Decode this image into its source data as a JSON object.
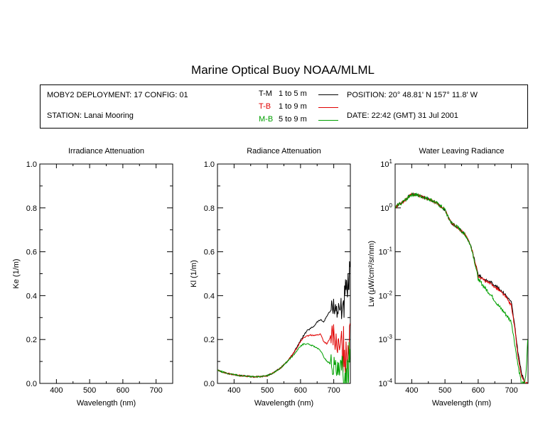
{
  "title": "Marine Optical Buoy NOAA/MLML",
  "info": {
    "deployment": "MOBY2 DEPLOYMENT: 17 CONFIG: 01",
    "station": "STATION: Lanai Mooring",
    "position": "POSITION: 20° 48.81' N   157° 11.8' W",
    "date": "DATE: 22:42 (GMT) 31 Jul 2001",
    "legend": [
      {
        "code": "T-M",
        "range": "1 to 5  m",
        "color": "#000000"
      },
      {
        "code": "T-B",
        "range": "1 to 9  m",
        "color": "#e00000"
      },
      {
        "code": "M-B",
        "range": "5 to 9  m",
        "color": "#00a000"
      }
    ]
  },
  "chart_data": [
    {
      "type": "line",
      "title": "Irradiance Attenuation",
      "xlabel": "Wavelength (nm)",
      "ylabel": "Ke  (1/m)",
      "xlim": [
        350,
        750
      ],
      "ylim": [
        0,
        1
      ],
      "xticks": [
        400,
        500,
        600,
        700
      ],
      "yticks": [
        "0.0",
        "0.2",
        "0.4",
        "0.6",
        "0.8",
        "1.0"
      ],
      "series": []
    },
    {
      "type": "line",
      "title": "Radiance Attenuation",
      "xlabel": "Wavelength (nm)",
      "ylabel": "Kl  (1/m)",
      "xlim": [
        350,
        750
      ],
      "ylim": [
        0,
        1
      ],
      "xticks": [
        400,
        500,
        600,
        700
      ],
      "yticks": [
        "0.0",
        "0.2",
        "0.4",
        "0.6",
        "0.8",
        "1.0"
      ],
      "noise_from": 690,
      "series": [
        {
          "color": "#000000",
          "noise": 0.04,
          "x": [
            350,
            360,
            380,
            400,
            420,
            440,
            460,
            480,
            500,
            520,
            540,
            560,
            580,
            590,
            600,
            610,
            620,
            630,
            640,
            650,
            660,
            670,
            680,
            690,
            700,
            710,
            720,
            730,
            740,
            745,
            750
          ],
          "y": [
            0.06,
            0.055,
            0.045,
            0.04,
            0.035,
            0.033,
            0.03,
            0.031,
            0.035,
            0.05,
            0.07,
            0.1,
            0.14,
            0.17,
            0.195,
            0.22,
            0.24,
            0.25,
            0.26,
            0.28,
            0.29,
            0.28,
            0.31,
            0.33,
            0.36,
            0.33,
            0.34,
            0.37,
            0.4,
            0.45,
            0.5
          ]
        },
        {
          "color": "#e00000",
          "noise": 0.05,
          "x": [
            350,
            360,
            380,
            400,
            420,
            440,
            460,
            480,
            500,
            520,
            540,
            560,
            580,
            590,
            600,
            610,
            620,
            630,
            640,
            650,
            660,
            670,
            680,
            690,
            700,
            710,
            720,
            730,
            740,
            745,
            750
          ],
          "y": [
            0.06,
            0.055,
            0.045,
            0.04,
            0.035,
            0.033,
            0.03,
            0.031,
            0.035,
            0.05,
            0.07,
            0.1,
            0.14,
            0.165,
            0.19,
            0.21,
            0.215,
            0.22,
            0.22,
            0.22,
            0.225,
            0.19,
            0.18,
            0.21,
            0.22,
            0.17,
            0.15,
            0.16,
            0.14,
            0.2,
            0.3
          ]
        },
        {
          "color": "#00a000",
          "noise": 0.05,
          "x": [
            350,
            360,
            380,
            400,
            420,
            440,
            460,
            480,
            500,
            520,
            540,
            560,
            580,
            590,
            600,
            610,
            620,
            630,
            640,
            650,
            660,
            670,
            680,
            690,
            700,
            710,
            720,
            730,
            740,
            745,
            750
          ],
          "y": [
            0.06,
            0.055,
            0.045,
            0.04,
            0.035,
            0.033,
            0.03,
            0.031,
            0.035,
            0.05,
            0.07,
            0.1,
            0.13,
            0.15,
            0.17,
            0.18,
            0.18,
            0.175,
            0.17,
            0.16,
            0.15,
            0.12,
            0.1,
            0.09,
            0.08,
            0.05,
            0.04,
            0.03,
            0.02,
            0.1,
            0.25
          ]
        }
      ]
    },
    {
      "type": "line",
      "title": "Water Leaving Radiance",
      "xlabel": "Wavelength (nm)",
      "ylabel": "Lw  (μW/cm²/sr/nm)",
      "xlim": [
        350,
        750
      ],
      "ylim": [
        0.0001,
        10
      ],
      "yscale": "log",
      "xticks": [
        400,
        500,
        600,
        700
      ],
      "yticks": [
        {
          "base": "10",
          "exp": "1"
        },
        {
          "base": "10",
          "exp": "0"
        },
        {
          "base": "10",
          "exp": "-1"
        },
        {
          "base": "10",
          "exp": "-2"
        },
        {
          "base": "10",
          "exp": "-3"
        },
        {
          "base": "10",
          "exp": "-4"
        }
      ],
      "noise_from": 350,
      "series": [
        {
          "color": "#000000",
          "noise": 0.06,
          "x": [
            350,
            360,
            370,
            380,
            390,
            400,
            410,
            420,
            440,
            460,
            480,
            500,
            510,
            520,
            540,
            560,
            570,
            580,
            590,
            600,
            620,
            640,
            660,
            680,
            700,
            710,
            720,
            730,
            740,
            745,
            750
          ],
          "y": [
            1.0,
            1.2,
            1.3,
            1.5,
            1.8,
            2.0,
            2.0,
            1.9,
            1.7,
            1.5,
            1.2,
            0.9,
            0.6,
            0.45,
            0.35,
            0.25,
            0.18,
            0.12,
            0.06,
            0.03,
            0.023,
            0.02,
            0.015,
            0.011,
            0.007,
            0.002,
            0.0005,
            0.00018,
            0.0001,
            0.0001,
            0.0001
          ]
        },
        {
          "color": "#e00000",
          "noise": 0.06,
          "x": [
            350,
            360,
            370,
            380,
            390,
            400,
            410,
            420,
            440,
            460,
            480,
            500,
            510,
            520,
            540,
            560,
            570,
            580,
            590,
            600,
            620,
            640,
            660,
            680,
            700,
            710,
            720,
            730,
            740,
            745,
            750
          ],
          "y": [
            1.0,
            1.2,
            1.3,
            1.5,
            1.8,
            2.0,
            2.0,
            1.9,
            1.7,
            1.5,
            1.2,
            0.9,
            0.6,
            0.45,
            0.35,
            0.25,
            0.18,
            0.12,
            0.06,
            0.028,
            0.022,
            0.018,
            0.014,
            0.01,
            0.006,
            0.0018,
            0.0004,
            0.00015,
            0.0001,
            0.0001,
            0.0001
          ]
        },
        {
          "color": "#00a000",
          "noise": 0.08,
          "x": [
            350,
            360,
            370,
            380,
            390,
            400,
            410,
            420,
            440,
            460,
            480,
            500,
            510,
            520,
            540,
            560,
            570,
            580,
            590,
            600,
            620,
            640,
            660,
            680,
            700,
            710,
            720,
            730,
            740,
            745,
            750
          ],
          "y": [
            1.0,
            1.2,
            1.3,
            1.5,
            1.8,
            2.0,
            2.0,
            1.9,
            1.7,
            1.5,
            1.2,
            0.9,
            0.6,
            0.45,
            0.35,
            0.25,
            0.18,
            0.12,
            0.055,
            0.024,
            0.015,
            0.01,
            0.006,
            0.004,
            0.0025,
            0.0008,
            0.00025,
            0.0001,
            0.0001,
            0.0002,
            0.0015
          ]
        }
      ]
    }
  ]
}
